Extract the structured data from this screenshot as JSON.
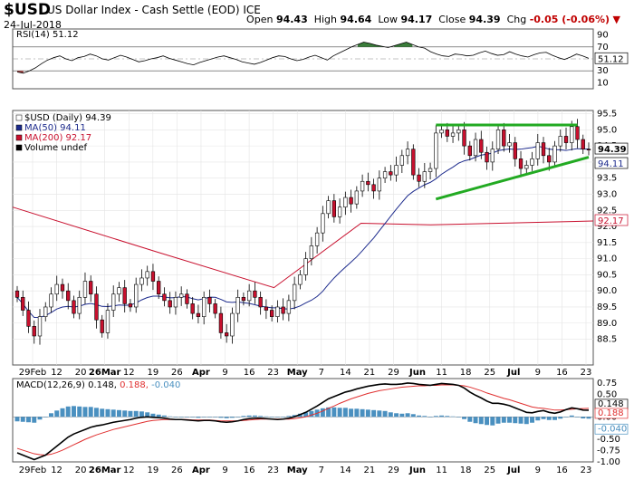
{
  "header": {
    "symbol": "$USD",
    "name": "US Dollar Index - Cash Settle (EOD)",
    "exchange": "ICE",
    "date": "24-Jul-2018",
    "open_label": "Open",
    "open": "94.43",
    "high_label": "High",
    "high": "94.64",
    "low_label": "Low",
    "low": "94.17",
    "close_label": "Close",
    "close": "94.39",
    "chg_label": "Chg",
    "chg": "-0.05 (-0.06%)"
  },
  "colors": {
    "up": "#ffffff",
    "down": "#c8102e",
    "wick": "#000000",
    "ma50": "#1c2a8c",
    "ma200": "#c8102e",
    "trendline": "#22aa22",
    "rsi_fill": "#3a7d3a",
    "rsi_oversold_fill": "#a04040",
    "macd_hist": "#4a90c0",
    "signal": "#e03030"
  },
  "chart_data": [
    {
      "type": "line",
      "title": "RSI(14) 51.12",
      "indicator": "RSI",
      "period": 14,
      "last_value": 51.12,
      "ylim": [
        0,
        100
      ],
      "y_ticks": [
        10,
        30,
        50,
        70,
        90
      ],
      "overbought": 70,
      "oversold": 30,
      "last_label": "51.12",
      "values": [
        28,
        26,
        30,
        35,
        42,
        48,
        52,
        55,
        50,
        47,
        52,
        54,
        58,
        55,
        50,
        48,
        52,
        56,
        53,
        49,
        45,
        47,
        50,
        52,
        55,
        51,
        48,
        45,
        42,
        40,
        44,
        47,
        50,
        53,
        55,
        52,
        49,
        45,
        43,
        41,
        44,
        48,
        52,
        55,
        54,
        50,
        47,
        49,
        53,
        56,
        52,
        48,
        55,
        60,
        65,
        70,
        74,
        78,
        76,
        73,
        71,
        69,
        72,
        75,
        78,
        74,
        70,
        68,
        62,
        58,
        55,
        54,
        58,
        57,
        55,
        56,
        60,
        63,
        59,
        56,
        57,
        62,
        58,
        55,
        53,
        57,
        60,
        61,
        56,
        52,
        49,
        53,
        58,
        55,
        51
      ]
    },
    {
      "type": "candlestick",
      "title": "$USD (Daily) 94.39",
      "legend": [
        "$USD (Daily) 94.39",
        "MA(50) 94.11",
        "MA(200) 92.17",
        "Volume undef"
      ],
      "ylim": [
        87.7,
        95.6
      ],
      "y_ticks": [
        88.5,
        89.0,
        89.5,
        90.0,
        90.5,
        91.0,
        91.5,
        92.0,
        92.5,
        93.0,
        93.5,
        94.0,
        94.5,
        95.0,
        95.5
      ],
      "last_price_labels": [
        {
          "text": "94.39",
          "bold": true
        },
        {
          "text": "94.11",
          "bold": false
        },
        {
          "text": "92.17",
          "bold": false
        }
      ],
      "x_tick_labels": [
        "29Feb",
        "12",
        "20",
        "26Mar",
        "12",
        "19",
        "26",
        "Apr",
        "9",
        "16",
        "23",
        "May",
        "7",
        "14",
        "21",
        "29",
        "Jun",
        "11",
        "18",
        "25",
        "Jul",
        "9",
        "16",
        "23"
      ],
      "x_tick_bold": [
        "Mar",
        "Apr",
        "May",
        "Jun",
        "Jul"
      ],
      "closes": [
        89.8,
        89.4,
        88.9,
        88.6,
        89.2,
        89.5,
        89.9,
        90.2,
        90.0,
        89.7,
        89.3,
        89.8,
        90.3,
        89.9,
        89.1,
        88.7,
        89.4,
        89.9,
        90.1,
        89.6,
        89.5,
        90.2,
        90.4,
        90.6,
        90.3,
        89.9,
        89.7,
        89.5,
        89.8,
        89.9,
        89.6,
        89.3,
        89.2,
        89.8,
        89.6,
        89.3,
        88.7,
        88.6,
        89.3,
        89.8,
        89.7,
        90.0,
        89.8,
        89.5,
        89.4,
        89.2,
        89.5,
        89.3,
        89.7,
        90.2,
        90.5,
        91.0,
        91.4,
        91.8,
        92.4,
        92.8,
        92.3,
        92.6,
        92.9,
        92.7,
        93.1,
        93.4,
        93.3,
        93.1,
        93.5,
        93.7,
        93.6,
        93.9,
        94.2,
        94.4,
        93.6,
        93.4,
        93.7,
        93.8,
        94.9,
        95.0,
        94.8,
        94.9,
        95.0,
        94.5,
        94.2,
        94.7,
        94.3,
        94.0,
        94.4,
        95.0,
        94.5,
        94.6,
        94.1,
        93.8,
        93.9,
        94.1,
        94.6,
        94.2,
        94.0,
        94.5,
        94.8,
        94.6,
        95.1,
        94.7,
        94.4,
        94.39
      ],
      "series": [
        {
          "name": "MA(50) 94.11",
          "period": 50
        },
        {
          "name": "MA(200) 92.17",
          "points": [
            [
              0,
              92.6
            ],
            [
              0.25,
              91.2
            ],
            [
              0.45,
              90.1
            ],
            [
              0.6,
              92.1
            ],
            [
              0.72,
              92.05
            ],
            [
              1,
              92.17
            ]
          ]
        }
      ],
      "trendlines": [
        {
          "from": [
            74,
            95.15
          ],
          "to": [
            99,
            95.15
          ]
        },
        {
          "from": [
            74,
            92.85
          ],
          "to": [
            101,
            94.15
          ]
        }
      ]
    },
    {
      "type": "line",
      "title": "MACD(12,26,9) 0.148, 0.188, -0.040",
      "indicator": "MACD",
      "parameters": [
        12,
        26,
        9
      ],
      "legend_values": {
        "macd": 0.148,
        "signal": 0.188,
        "histogram": -0.04
      },
      "legend_texts": {
        "label": "MACD(12,26,9)",
        "macd": "0.148,",
        "signal": "0.188,",
        "histogram": "-0.040"
      },
      "ylim": [
        -1.0,
        0.85
      ],
      "y_ticks": [
        "0.75",
        "0.50",
        "0.25",
        "0.00",
        "-0.25",
        "-0.50",
        "-0.75",
        "-1.00"
      ],
      "last_labels": [
        "0.148",
        "0.188",
        "-0.040"
      ],
      "x_tick_labels": [
        "29Feb",
        "12",
        "20",
        "26Mar",
        "12",
        "19",
        "26",
        "Apr",
        "9",
        "16",
        "23",
        "May",
        "7",
        "14",
        "21",
        "29",
        "Jun",
        "11",
        "18",
        "25",
        "Jul",
        "9",
        "16",
        "23"
      ],
      "x_tick_bold": [
        "Mar",
        "Apr",
        "May",
        "Jun",
        "Jul"
      ],
      "macd": [
        -0.8,
        -0.85,
        -0.9,
        -0.95,
        -0.9,
        -0.85,
        -0.75,
        -0.65,
        -0.55,
        -0.45,
        -0.38,
        -0.33,
        -0.28,
        -0.23,
        -0.2,
        -0.18,
        -0.15,
        -0.12,
        -0.1,
        -0.08,
        -0.06,
        -0.03,
        -0.01,
        0.0,
        -0.01,
        -0.02,
        -0.03,
        -0.05,
        -0.06,
        -0.06,
        -0.07,
        -0.08,
        -0.09,
        -0.08,
        -0.08,
        -0.09,
        -0.11,
        -0.12,
        -0.11,
        -0.09,
        -0.06,
        -0.04,
        -0.03,
        -0.03,
        -0.04,
        -0.05,
        -0.06,
        -0.05,
        -0.03,
        0.0,
        0.05,
        0.1,
        0.17,
        0.24,
        0.32,
        0.4,
        0.45,
        0.5,
        0.55,
        0.58,
        0.62,
        0.65,
        0.68,
        0.7,
        0.72,
        0.73,
        0.72,
        0.72,
        0.73,
        0.75,
        0.74,
        0.72,
        0.71,
        0.7,
        0.72,
        0.74,
        0.73,
        0.72,
        0.7,
        0.64,
        0.55,
        0.48,
        0.42,
        0.35,
        0.3,
        0.3,
        0.28,
        0.25,
        0.2,
        0.15,
        0.1,
        0.09,
        0.12,
        0.14,
        0.1,
        0.08,
        0.11,
        0.16,
        0.2,
        0.18,
        0.15,
        0.148
      ],
      "signal": [
        -0.7,
        -0.74,
        -0.78,
        -0.82,
        -0.84,
        -0.85,
        -0.83,
        -0.79,
        -0.74,
        -0.68,
        -0.62,
        -0.56,
        -0.5,
        -0.45,
        -0.4,
        -0.36,
        -0.32,
        -0.28,
        -0.25,
        -0.22,
        -0.19,
        -0.16,
        -0.13,
        -0.1,
        -0.08,
        -0.07,
        -0.06,
        -0.06,
        -0.06,
        -0.06,
        -0.06,
        -0.07,
        -0.07,
        -0.07,
        -0.07,
        -0.08,
        -0.09,
        -0.09,
        -0.09,
        -0.09,
        -0.08,
        -0.07,
        -0.06,
        -0.05,
        -0.05,
        -0.05,
        -0.05,
        -0.05,
        -0.05,
        -0.04,
        -0.02,
        0.0,
        0.04,
        0.08,
        0.13,
        0.19,
        0.24,
        0.3,
        0.35,
        0.4,
        0.44,
        0.48,
        0.52,
        0.55,
        0.58,
        0.6,
        0.62,
        0.64,
        0.66,
        0.67,
        0.68,
        0.69,
        0.69,
        0.7,
        0.7,
        0.71,
        0.71,
        0.71,
        0.7,
        0.69,
        0.66,
        0.62,
        0.58,
        0.53,
        0.49,
        0.45,
        0.41,
        0.38,
        0.34,
        0.3,
        0.26,
        0.22,
        0.2,
        0.19,
        0.17,
        0.15,
        0.15,
        0.16,
        0.17,
        0.18,
        0.185,
        0.188
      ]
    }
  ]
}
